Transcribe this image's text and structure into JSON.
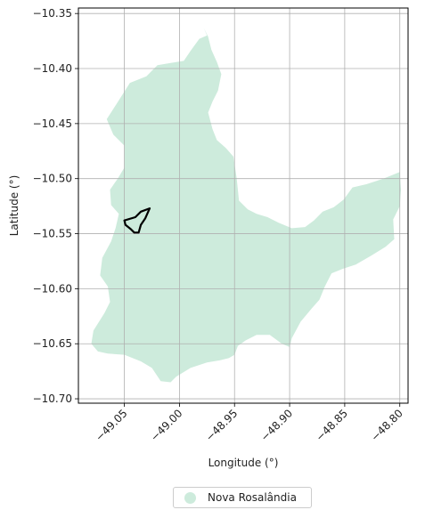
{
  "chart_data": {
    "type": "map",
    "xlabel": "Longitude (°)",
    "ylabel": "Latitude (°)",
    "xlim": [
      -49.0917,
      -48.7925
    ],
    "ylim": [
      -10.704,
      -10.345
    ],
    "xticks": [
      -49.05,
      -49.0,
      -48.95,
      -48.9,
      -48.85,
      -48.8
    ],
    "xtick_labels": [
      "−49.05",
      "−49.00",
      "−48.95",
      "−48.90",
      "−48.85",
      "−48.80"
    ],
    "yticks": [
      -10.35,
      -10.4,
      -10.45,
      -10.5,
      -10.55,
      -10.6,
      -10.65,
      -10.7
    ],
    "ytick_labels": [
      "−10.35",
      "−10.40",
      "−10.45",
      "−10.50",
      "−10.55",
      "−10.60",
      "−10.65",
      "−10.70"
    ],
    "grid": true,
    "legend_placement": "below plot, centered",
    "legend": [
      {
        "label": "Nova Rosalândia",
        "color": "#cdebdc"
      }
    ],
    "region": {
      "name": "Nova Rosalândia",
      "fill": "#cdebdc",
      "outline": [
        [
          -48.978,
          -10.363
        ],
        [
          -48.975,
          -10.37
        ],
        [
          -48.982,
          -10.373
        ],
        [
          -48.99,
          -10.384
        ],
        [
          -48.996,
          -10.393
        ],
        [
          -49.008,
          -10.395
        ],
        [
          -49.02,
          -10.397
        ],
        [
          -49.03,
          -10.407
        ],
        [
          -49.045,
          -10.413
        ],
        [
          -49.057,
          -10.432
        ],
        [
          -49.066,
          -10.446
        ],
        [
          -49.06,
          -10.46
        ],
        [
          -49.05,
          -10.47
        ],
        [
          -49.05,
          -10.49
        ],
        [
          -49.056,
          -10.5
        ],
        [
          -49.063,
          -10.51
        ],
        [
          -49.062,
          -10.524
        ],
        [
          -49.055,
          -10.532
        ],
        [
          -49.058,
          -10.545
        ],
        [
          -49.062,
          -10.557
        ],
        [
          -49.07,
          -10.572
        ],
        [
          -49.072,
          -10.588
        ],
        [
          -49.065,
          -10.598
        ],
        [
          -49.063,
          -10.612
        ],
        [
          -49.068,
          -10.622
        ],
        [
          -49.078,
          -10.638
        ],
        [
          -49.08,
          -10.65
        ],
        [
          -49.074,
          -10.657
        ],
        [
          -49.065,
          -10.659
        ],
        [
          -49.05,
          -10.66
        ],
        [
          -49.035,
          -10.666
        ],
        [
          -49.025,
          -10.672
        ],
        [
          -49.017,
          -10.684
        ],
        [
          -49.008,
          -10.685
        ],
        [
          -49.003,
          -10.68
        ],
        [
          -48.99,
          -10.672
        ],
        [
          -48.975,
          -10.667
        ],
        [
          -48.963,
          -10.665
        ],
        [
          -48.955,
          -10.663
        ],
        [
          -48.95,
          -10.66
        ],
        [
          -48.947,
          -10.652
        ],
        [
          -48.94,
          -10.647
        ],
        [
          -48.93,
          -10.642
        ],
        [
          -48.918,
          -10.642
        ],
        [
          -48.907,
          -10.65
        ],
        [
          -48.9,
          -10.653
        ],
        [
          -48.898,
          -10.645
        ],
        [
          -48.89,
          -10.63
        ],
        [
          -48.88,
          -10.618
        ],
        [
          -48.873,
          -10.61
        ],
        [
          -48.868,
          -10.598
        ],
        [
          -48.862,
          -10.586
        ],
        [
          -48.852,
          -10.582
        ],
        [
          -48.84,
          -10.578
        ],
        [
          -48.826,
          -10.57
        ],
        [
          -48.813,
          -10.562
        ],
        [
          -48.805,
          -10.555
        ],
        [
          -48.806,
          -10.537
        ],
        [
          -48.8,
          -10.525
        ],
        [
          -48.799,
          -10.51
        ],
        [
          -48.8,
          -10.494
        ],
        [
          -48.815,
          -10.5
        ],
        [
          -48.83,
          -10.505
        ],
        [
          -48.843,
          -10.508
        ],
        [
          -48.851,
          -10.519
        ],
        [
          -48.86,
          -10.526
        ],
        [
          -48.87,
          -10.53
        ],
        [
          -48.878,
          -10.538
        ],
        [
          -48.886,
          -10.544
        ],
        [
          -48.898,
          -10.545
        ],
        [
          -48.91,
          -10.54
        ],
        [
          -48.92,
          -10.535
        ],
        [
          -48.93,
          -10.532
        ],
        [
          -48.938,
          -10.528
        ],
        [
          -48.946,
          -10.52
        ],
        [
          -48.948,
          -10.5
        ],
        [
          -48.951,
          -10.48
        ],
        [
          -48.958,
          -10.472
        ],
        [
          -48.966,
          -10.465
        ],
        [
          -48.97,
          -10.455
        ],
        [
          -48.974,
          -10.44
        ],
        [
          -48.97,
          -10.43
        ],
        [
          -48.965,
          -10.42
        ],
        [
          -48.962,
          -10.405
        ],
        [
          -48.966,
          -10.394
        ],
        [
          -48.971,
          -10.383
        ],
        [
          -48.974,
          -10.371
        ],
        [
          -48.978,
          -10.363
        ]
      ]
    },
    "highlight": {
      "stroke": "#000000",
      "outline": [
        [
          -49.027,
          -10.527
        ],
        [
          -49.035,
          -10.53
        ],
        [
          -49.04,
          -10.535
        ],
        [
          -49.05,
          -10.538
        ],
        [
          -49.049,
          -10.542
        ],
        [
          -49.044,
          -10.546
        ],
        [
          -49.041,
          -10.549
        ],
        [
          -49.037,
          -10.549
        ],
        [
          -49.035,
          -10.542
        ],
        [
          -49.031,
          -10.536
        ],
        [
          -49.027,
          -10.527
        ]
      ]
    }
  }
}
